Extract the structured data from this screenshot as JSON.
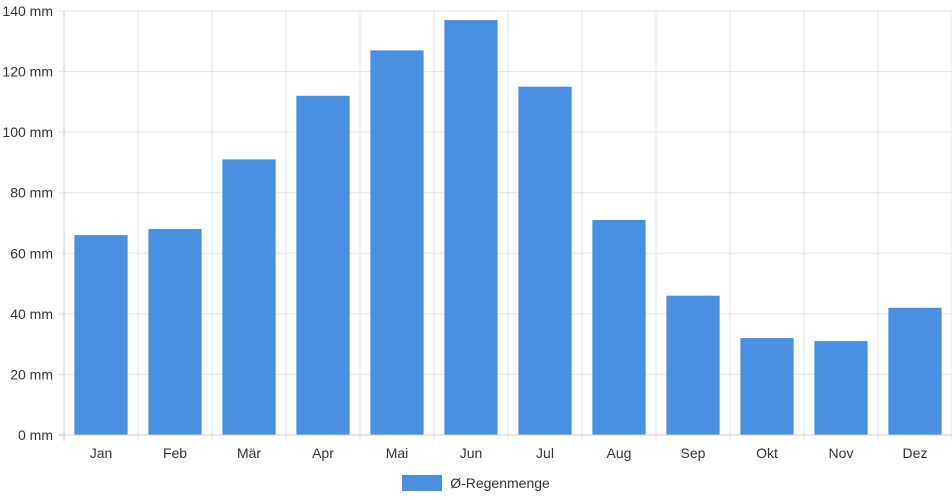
{
  "colors": {
    "bar": "#4a90e2",
    "grid": "#e5e5e5",
    "axis": "#cccccc",
    "text": "#333333"
  },
  "chart_data": {
    "type": "bar",
    "categories": [
      "Jan",
      "Feb",
      "Mär",
      "Apr",
      "Mai",
      "Jun",
      "Jul",
      "Aug",
      "Sep",
      "Okt",
      "Nov",
      "Dez"
    ],
    "series": [
      {
        "name": "Ø-Regenmenge",
        "values": [
          66,
          68,
          91,
          112,
          127,
          137,
          115,
          71,
          46,
          32,
          31,
          42
        ]
      }
    ],
    "ylim": [
      0,
      140
    ],
    "yticks": [
      0,
      20,
      40,
      60,
      80,
      100,
      120,
      140
    ],
    "y_tick_labels": [
      "0 mm",
      "20 mm",
      "40 mm",
      "60 mm",
      "80 mm",
      "100 mm",
      "120 mm",
      "140 mm"
    ],
    "grid": true,
    "legend_position": "bottom"
  }
}
